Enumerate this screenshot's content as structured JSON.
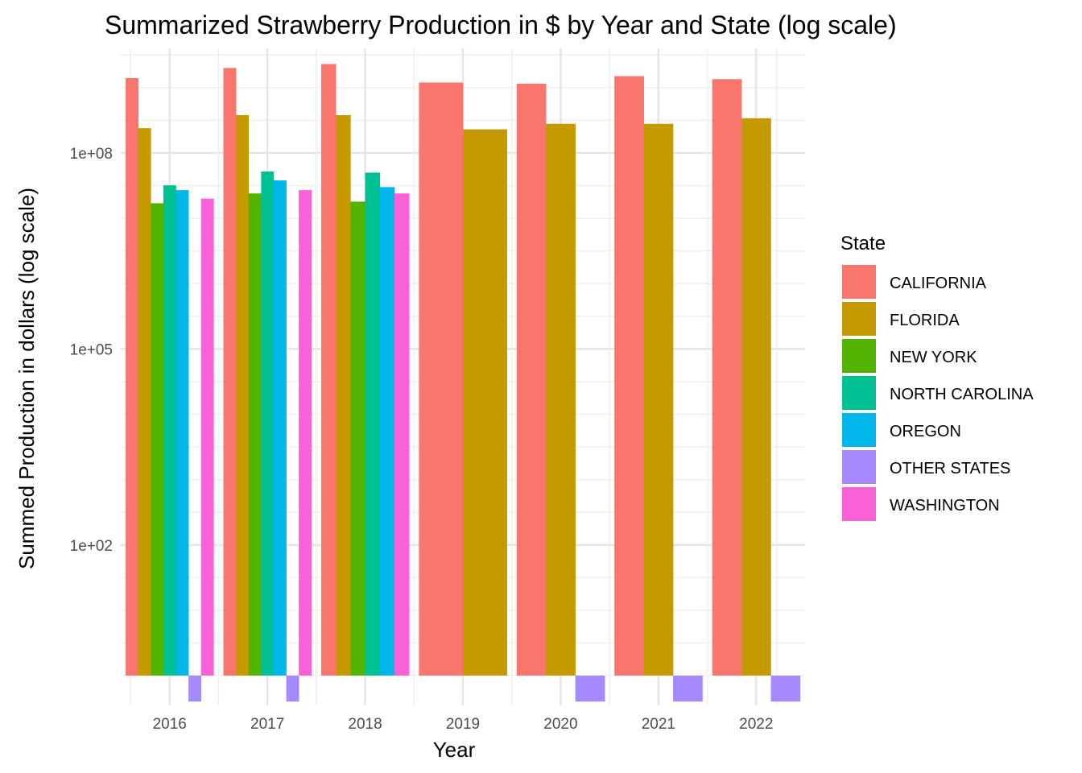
{
  "chart_data": {
    "type": "bar",
    "title": "Summarized Strawberry Production in $ by Year and State (log scale)",
    "xlabel": "Year",
    "ylabel": "Summed Production in dollars (log scale)",
    "y_scale": "log10",
    "y_ticks": [
      {
        "value": 100,
        "label": "1e+02"
      },
      {
        "value": 100000,
        "label": "1e+05"
      },
      {
        "value": 100000000,
        "label": "1e+08"
      }
    ],
    "ylim": [
      0.35,
      4000000000
    ],
    "bar_baseline": 1,
    "grid": true,
    "legend_title": "State",
    "legend_position": "right",
    "categories": [
      "2016",
      "2017",
      "2018",
      "2019",
      "2020",
      "2021",
      "2022"
    ],
    "series": [
      {
        "name": "CALIFORNIA",
        "color": "#F8766D",
        "values": [
          1400000000,
          2000000000,
          2300000000,
          1200000000,
          1150000000,
          1500000000,
          1350000000
        ]
      },
      {
        "name": "FLORIDA",
        "color": "#C49A00",
        "values": [
          240000000,
          380000000,
          380000000,
          230000000,
          280000000,
          280000000,
          340000000
        ]
      },
      {
        "name": "NEW YORK",
        "color": "#53B400",
        "values": [
          17000000,
          24000000,
          18000000,
          null,
          null,
          null,
          null
        ]
      },
      {
        "name": "NORTH CAROLINA",
        "color": "#00C094",
        "values": [
          32000000,
          52000000,
          50000000,
          null,
          null,
          null,
          null
        ]
      },
      {
        "name": "OREGON",
        "color": "#00B6EB",
        "values": [
          27000000,
          38000000,
          30000000,
          null,
          null,
          null,
          null
        ]
      },
      {
        "name": "OTHER STATES",
        "color": "#A58AFF",
        "values": [
          0.4,
          0.4,
          null,
          null,
          0.4,
          0.4,
          0.4
        ]
      },
      {
        "name": "WASHINGTON",
        "color": "#FB61D7",
        "values": [
          20000000,
          27000000,
          24000000,
          null,
          null,
          null,
          null
        ]
      }
    ]
  }
}
